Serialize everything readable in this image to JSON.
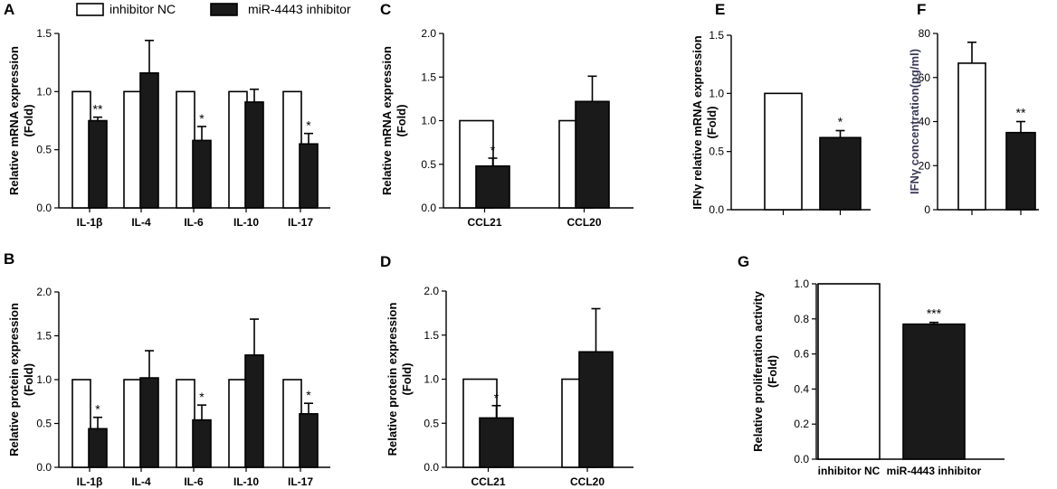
{
  "legend": {
    "inhibitor_nc": "inhibitor NC",
    "mir_inhibitor": "miR-4443 inhibitor",
    "colors": {
      "inhibitor_nc": "#ffffff",
      "mir_inhibitor": "#1a1a1a",
      "stroke": "#000000"
    }
  },
  "chart_data": [
    {
      "panel": "A",
      "type": "bar",
      "ylabel": [
        "Relative mRNA expression",
        "(Fold)"
      ],
      "ylim": [
        0,
        1.5
      ],
      "yticks": [
        "0.0",
        "0.5",
        "1.0",
        "1.5"
      ],
      "categories": [
        "IL-1β",
        "IL-4",
        "IL-6",
        "IL-10",
        "IL-17"
      ],
      "series": [
        {
          "name": "inhibitor NC",
          "values": [
            1.0,
            1.0,
            1.0,
            1.0,
            1.0
          ],
          "errors": [
            0,
            0,
            0,
            0,
            0
          ]
        },
        {
          "name": "miR-4443 inhibitor",
          "values": [
            0.75,
            1.16,
            0.58,
            0.91,
            0.55
          ],
          "errors": [
            0.03,
            0.28,
            0.12,
            0.11,
            0.09
          ]
        }
      ],
      "significance": [
        "**",
        "",
        "*",
        "",
        "*"
      ]
    },
    {
      "panel": "B",
      "type": "bar",
      "ylabel": [
        "Relative protein expression",
        "(Fold)"
      ],
      "ylim": [
        0,
        2.0
      ],
      "yticks": [
        "0.0",
        "0.5",
        "1.0",
        "1.5",
        "2.0"
      ],
      "categories": [
        "IL-1β",
        "IL-4",
        "IL-6",
        "IL-10",
        "IL-17"
      ],
      "series": [
        {
          "name": "inhibitor NC",
          "values": [
            1.0,
            1.0,
            1.0,
            1.0,
            1.0
          ],
          "errors": [
            0,
            0,
            0,
            0,
            0
          ]
        },
        {
          "name": "miR-4443 inhibitor",
          "values": [
            0.44,
            1.02,
            0.54,
            1.28,
            0.61
          ],
          "errors": [
            0.13,
            0.31,
            0.17,
            0.41,
            0.12
          ]
        }
      ],
      "significance": [
        "*",
        "",
        "*",
        "",
        "*"
      ]
    },
    {
      "panel": "C",
      "type": "bar",
      "ylabel": [
        "Relative mRNA expression",
        "(Fold)"
      ],
      "ylim": [
        0,
        2.0
      ],
      "yticks": [
        "0.0",
        "0.5",
        "1.0",
        "1.5",
        "2.0"
      ],
      "categories": [
        "CCL21",
        "CCL20"
      ],
      "series": [
        {
          "name": "inhibitor NC",
          "values": [
            1.0,
            1.0
          ],
          "errors": [
            0,
            0
          ]
        },
        {
          "name": "miR-4443 inhibitor",
          "values": [
            0.48,
            1.22
          ],
          "errors": [
            0.09,
            0.29
          ]
        }
      ],
      "significance": [
        "*",
        ""
      ]
    },
    {
      "panel": "D",
      "type": "bar",
      "ylabel": [
        "Relative protein expression",
        "(Fold)"
      ],
      "ylim": [
        0,
        2.0
      ],
      "yticks": [
        "0.0",
        "0.5",
        "1.0",
        "1.5",
        "2.0"
      ],
      "categories": [
        "CCL21",
        "CCL20"
      ],
      "series": [
        {
          "name": "inhibitor NC",
          "values": [
            1.0,
            1.0
          ],
          "errors": [
            0,
            0
          ]
        },
        {
          "name": "miR-4443 inhibitor",
          "values": [
            0.56,
            1.31
          ],
          "errors": [
            0.14,
            0.49
          ]
        }
      ],
      "significance": [
        "*",
        ""
      ]
    },
    {
      "panel": "E",
      "type": "bar",
      "ylabel": [
        "IFNγ  relative  mRNA expression",
        "(Fold)"
      ],
      "ylim": [
        0,
        1.5
      ],
      "yticks": [
        "0.0",
        "0.5",
        "1.0",
        "1.5"
      ],
      "categories": [
        "inhibitor NC",
        "miR-4443 inhibitor"
      ],
      "values": [
        1.0,
        0.62
      ],
      "errors": [
        0,
        0.06
      ],
      "significance": [
        "",
        "*"
      ]
    },
    {
      "panel": "F",
      "type": "bar",
      "ylabel": [
        "IFNγ  concentration(pg/ml)"
      ],
      "ylim": [
        0,
        80
      ],
      "yticks": [
        "0",
        "20",
        "40",
        "60",
        "80"
      ],
      "categories": [
        "inhibitor NC",
        "miR-4443 inhibitor"
      ],
      "values": [
        66.5,
        35.0
      ],
      "errors": [
        9.5,
        5.0
      ],
      "significance": [
        "",
        "**"
      ]
    },
    {
      "panel": "G",
      "type": "bar",
      "ylabel": [
        "Relative proliferation activity",
        "(Fold)"
      ],
      "ylim": [
        0,
        1.0
      ],
      "yticks": [
        "0.0",
        "0.2",
        "0.4",
        "0.6",
        "0.8",
        "1.0"
      ],
      "categories": [
        "inhibitor NC",
        "miR-4443 inhibitor"
      ],
      "values": [
        1.0,
        0.77
      ],
      "errors": [
        0,
        0.01
      ],
      "significance": [
        "",
        "***"
      ]
    }
  ]
}
